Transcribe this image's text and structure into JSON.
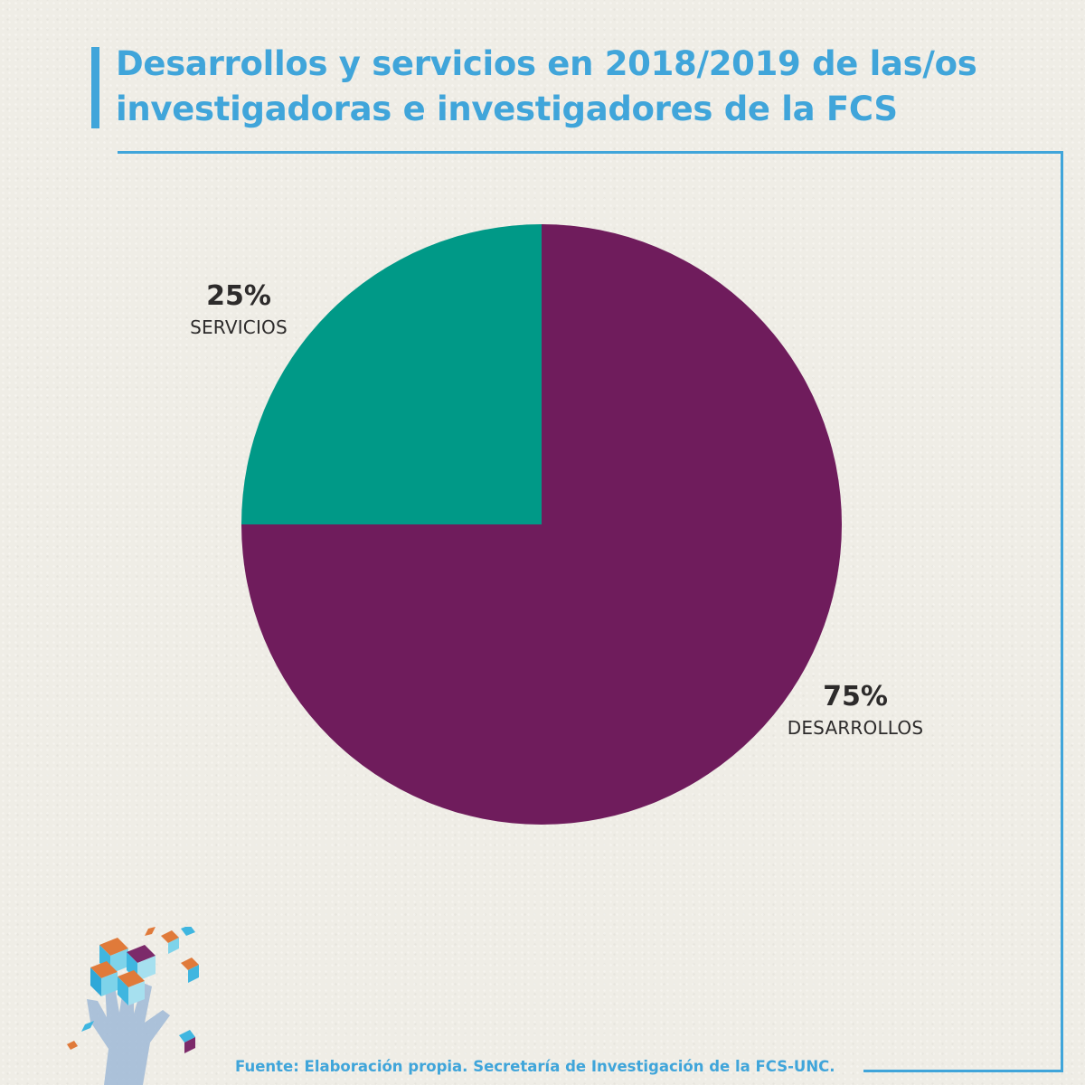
{
  "header": {
    "title_line1": "Desarrollos y servicios en 2018/2019 de las/os",
    "title_line2": "investigadoras e investigadores de la FCS"
  },
  "colors": {
    "accent": "#40a5da",
    "servicios": "#009987",
    "desarrollos": "#6f1c5c",
    "label_text": "#2d2b2b",
    "background": "#efede6"
  },
  "chart_data": {
    "type": "pie",
    "title": "Desarrollos y servicios en 2018/2019 de las/os investigadoras e investigadores de la FCS",
    "slices": [
      {
        "label": "DESARROLLOS",
        "value": 75,
        "value_label": "75%",
        "color": "#6f1c5c"
      },
      {
        "label": "SERVICIOS",
        "value": 25,
        "value_label": "25%",
        "color": "#009987"
      }
    ],
    "start_angle_deg": 0,
    "direction": "clockwise",
    "legend": "none (direct labels)"
  },
  "footer": {
    "source": "Fuente: Elaboración propia. Secretaría de Investigación de la FCS-UNC."
  },
  "decoration": {
    "logo_icon": "hand-with-cubes-icon"
  }
}
